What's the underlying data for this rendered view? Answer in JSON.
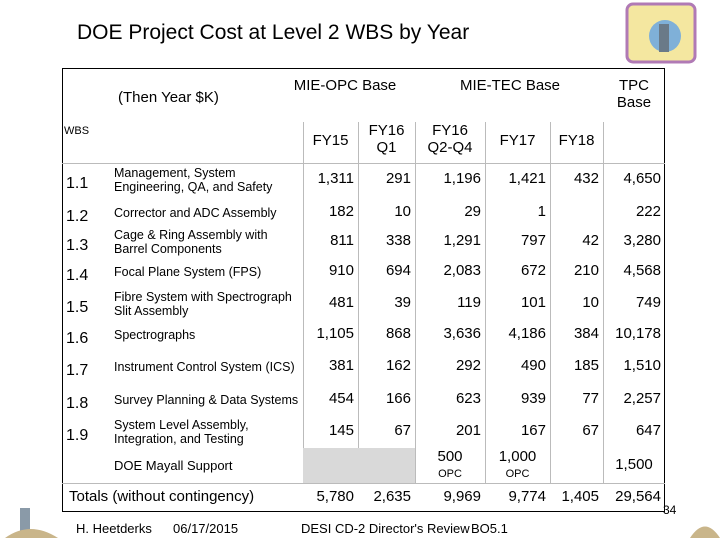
{
  "title": "DOE Project Cost at Level 2 WBS by Year",
  "table": {
    "unit_label": "(Then Year $K)",
    "group_headers": [
      "MIE-OPC Base",
      "MIE-TEC Base",
      "TPC Base"
    ],
    "wbs_header": "WBS",
    "columns": [
      "FY15",
      "FY16 Q1",
      "FY16 Q2-Q4",
      "FY17",
      "FY18"
    ],
    "rows": [
      {
        "wbs": "1.1",
        "label": "Management, System Engineering, QA, and Safety",
        "cells": [
          "1,311",
          "291",
          "1,196",
          "1,421",
          "432",
          "4,650"
        ]
      },
      {
        "wbs": "1.2",
        "label": "Corrector and ADC Assembly",
        "cells": [
          "182",
          "10",
          "29",
          "1",
          null,
          "222"
        ]
      },
      {
        "wbs": "1.3",
        "label": "Cage & Ring Assembly with Barrel Components",
        "cells": [
          "811",
          "338",
          "1,291",
          "797",
          "42",
          "3,280"
        ]
      },
      {
        "wbs": "1.4",
        "label": "Focal Plane System (FPS)",
        "cells": [
          "910",
          "694",
          "2,083",
          "672",
          "210",
          "4,568"
        ]
      },
      {
        "wbs": "1.5",
        "label": "Fibre System with Spectrograph Slit Assembly",
        "cells": [
          "481",
          "39",
          "119",
          "101",
          "10",
          "749"
        ]
      },
      {
        "wbs": "1.6",
        "label": "Spectrographs",
        "cells": [
          "1,105",
          "868",
          "3,636",
          "4,186",
          "384",
          "10,178"
        ]
      },
      {
        "wbs": "1.7",
        "label": "Instrument Control System (ICS)",
        "cells": [
          "381",
          "162",
          "292",
          "490",
          "185",
          "1,510"
        ]
      },
      {
        "wbs": "1.8",
        "label": "Survey Planning & Data Systems",
        "cells": [
          "454",
          "166",
          "623",
          "939",
          "77",
          "2,257"
        ]
      },
      {
        "wbs": "1.9",
        "label": "System Level Assembly, Integration, and Testing",
        "cells": [
          "145",
          "67",
          "201",
          "167",
          "67",
          "647"
        ]
      }
    ],
    "mayall": {
      "label": "DOE Mayall Support",
      "cells": [
        null,
        null,
        "500",
        "1,000",
        null,
        "1,500"
      ],
      "notes": [
        null,
        null,
        "OPC",
        "OPC",
        null,
        null
      ]
    },
    "totals": {
      "label": "Totals (without contingency)",
      "cells": [
        "5,780",
        "2,635",
        "9,969",
        "9,774",
        "1,405",
        "29,564"
      ]
    }
  },
  "footer": {
    "author": "H. Heetderks",
    "date": "06/17/2015",
    "event": "DESI CD-2 Director's Review",
    "code": "BO5.1",
    "page": "34"
  }
}
